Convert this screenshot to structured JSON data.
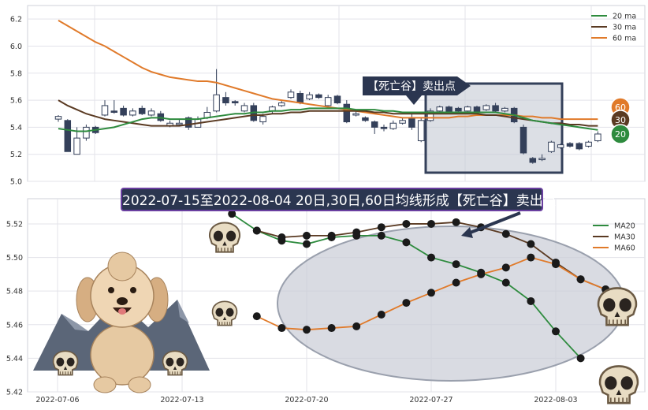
{
  "colors": {
    "ma20": "#2e8b3e",
    "ma30": "#5a3a22",
    "ma60": "#e07a2a",
    "candle_down": "#34405a",
    "candle_up_stroke": "#34405a",
    "grid": "#e3e3ea",
    "ellipse_fill": "#c9ccd6",
    "box_fill": "#c5c9d3",
    "banner_bg": "#2b3650",
    "banner_border": "#6a3fa0"
  },
  "annotation": {
    "callout": "【死亡谷】卖出点",
    "banner": "2022-07-15至2022-08-04 20日,30日,60日均线形成【死亡谷】卖出点"
  },
  "chart_data": [
    {
      "type": "candlestick",
      "ylim": [
        5.0,
        6.3
      ],
      "yticks": [
        "5.0",
        "5.2",
        "5.4",
        "5.6",
        "5.8",
        "6.0",
        "6.2"
      ],
      "legend": [
        "20 ma",
        "30 ma",
        "60 ma"
      ],
      "legend_position": "top-right",
      "end_badges": [
        "60",
        "30",
        "20"
      ],
      "candles": [
        [
          5.46,
          5.48,
          5.44,
          5.49,
          5.42
        ],
        [
          5.45,
          5.22,
          5.22,
          5.46,
          5.2
        ],
        [
          5.2,
          5.32,
          5.2,
          5.4,
          5.18
        ],
        [
          5.32,
          5.4,
          5.3,
          5.42,
          5.28
        ],
        [
          5.4,
          5.36,
          5.35,
          5.41,
          5.33
        ],
        [
          5.49,
          5.56,
          5.48,
          5.6,
          5.44
        ],
        [
          5.52,
          5.51,
          5.5,
          5.6,
          5.49
        ],
        [
          5.54,
          5.49,
          5.48,
          5.56,
          5.46
        ],
        [
          5.49,
          5.52,
          5.48,
          5.54,
          5.46
        ],
        [
          5.54,
          5.5,
          5.49,
          5.56,
          5.47
        ],
        [
          5.49,
          5.52,
          5.48,
          5.54,
          5.46
        ],
        [
          5.5,
          5.45,
          5.44,
          5.52,
          5.43
        ],
        [
          5.41,
          5.43,
          5.4,
          5.45,
          5.38
        ],
        [
          5.42,
          5.43,
          5.41,
          5.46,
          5.4
        ],
        [
          5.47,
          5.4,
          5.38,
          5.48,
          5.32
        ],
        [
          5.4,
          5.46,
          5.4,
          5.48,
          5.28
        ],
        [
          5.47,
          5.51,
          5.46,
          5.55,
          5.44
        ],
        [
          5.52,
          5.64,
          5.51,
          5.83,
          5.5
        ],
        [
          5.62,
          5.58,
          5.56,
          5.66,
          5.55
        ],
        [
          5.59,
          5.58,
          5.56,
          5.6,
          5.56
        ],
        [
          5.52,
          5.56,
          5.51,
          5.58,
          5.5
        ],
        [
          5.56,
          5.45,
          5.44,
          5.58,
          5.43
        ],
        [
          5.44,
          5.48,
          5.42,
          5.5,
          5.41
        ],
        [
          5.52,
          5.55,
          5.5,
          5.56,
          5.48
        ],
        [
          5.56,
          5.58,
          5.55,
          5.6,
          5.54
        ],
        [
          5.62,
          5.66,
          5.61,
          5.68,
          5.6
        ],
        [
          5.65,
          5.58,
          5.57,
          5.67,
          5.56
        ],
        [
          5.61,
          5.64,
          5.6,
          5.66,
          5.59
        ],
        [
          5.64,
          5.62,
          5.61,
          5.65,
          5.59
        ],
        [
          5.56,
          5.62,
          5.55,
          5.64,
          5.54
        ],
        [
          5.63,
          5.58,
          5.57,
          5.64,
          5.56
        ],
        [
          5.57,
          5.44,
          5.43,
          5.6,
          5.4
        ],
        [
          5.49,
          5.5,
          5.48,
          5.52,
          5.46
        ],
        [
          5.47,
          5.45,
          5.44,
          5.48,
          5.43
        ],
        [
          5.44,
          5.4,
          5.35,
          5.45,
          5.34
        ],
        [
          5.4,
          5.39,
          5.37,
          5.42,
          5.36
        ],
        [
          5.39,
          5.43,
          5.38,
          5.45,
          5.37
        ],
        [
          5.43,
          5.45,
          5.42,
          5.47,
          5.41
        ],
        [
          5.47,
          5.4,
          5.38,
          5.5,
          5.36
        ],
        [
          5.3,
          5.45,
          5.29,
          5.47,
          5.28
        ],
        [
          5.45,
          5.52,
          5.44,
          5.54,
          5.43
        ],
        [
          5.52,
          5.55,
          5.51,
          5.56,
          5.5
        ],
        [
          5.55,
          5.51,
          5.5,
          5.56,
          5.49
        ],
        [
          5.54,
          5.52,
          5.51,
          5.55,
          5.5
        ],
        [
          5.52,
          5.55,
          5.51,
          5.56,
          5.5
        ],
        [
          5.55,
          5.51,
          5.5,
          5.56,
          5.49
        ],
        [
          5.53,
          5.56,
          5.52,
          5.57,
          5.51
        ],
        [
          5.56,
          5.52,
          5.51,
          5.58,
          5.5
        ],
        [
          5.52,
          5.54,
          5.51,
          5.55,
          5.5
        ],
        [
          5.54,
          5.44,
          5.43,
          5.55,
          5.42
        ],
        [
          5.4,
          5.21,
          5.2,
          5.42,
          5.18
        ],
        [
          5.17,
          5.14,
          5.13,
          5.18,
          5.12
        ],
        [
          5.16,
          5.17,
          5.15,
          5.2,
          5.13
        ],
        [
          5.22,
          5.29,
          5.21,
          5.3,
          5.2
        ],
        [
          5.25,
          5.27,
          5.24,
          5.28,
          5.23
        ],
        [
          5.28,
          5.26,
          5.25,
          5.29,
          5.24
        ],
        [
          5.28,
          5.24,
          5.23,
          5.29,
          5.22
        ],
        [
          5.26,
          5.29,
          5.25,
          5.3,
          5.24
        ],
        [
          5.3,
          5.35,
          5.29,
          5.37,
          5.28
        ]
      ],
      "ma20": [
        5.39,
        5.38,
        5.37,
        5.37,
        5.38,
        5.39,
        5.4,
        5.42,
        5.44,
        5.46,
        5.47,
        5.47,
        5.46,
        5.46,
        5.46,
        5.46,
        5.47,
        5.48,
        5.49,
        5.5,
        5.5,
        5.51,
        5.51,
        5.52,
        5.52,
        5.53,
        5.53,
        5.54,
        5.54,
        5.54,
        5.54,
        5.54,
        5.53,
        5.53,
        5.53,
        5.52,
        5.52,
        5.51,
        5.51,
        5.51,
        5.51,
        5.51,
        5.51,
        5.51,
        5.51,
        5.51,
        5.51,
        5.51,
        5.5,
        5.49,
        5.47,
        5.45,
        5.44,
        5.43,
        5.42,
        5.41,
        5.4,
        5.39,
        5.38
      ],
      "ma30": [
        5.6,
        5.56,
        5.53,
        5.5,
        5.48,
        5.46,
        5.45,
        5.44,
        5.43,
        5.42,
        5.41,
        5.41,
        5.41,
        5.41,
        5.42,
        5.43,
        5.44,
        5.45,
        5.46,
        5.47,
        5.48,
        5.49,
        5.49,
        5.5,
        5.5,
        5.51,
        5.51,
        5.52,
        5.52,
        5.52,
        5.52,
        5.52,
        5.52,
        5.52,
        5.51,
        5.51,
        5.5,
        5.5,
        5.5,
        5.5,
        5.5,
        5.5,
        5.5,
        5.5,
        5.5,
        5.5,
        5.49,
        5.49,
        5.48,
        5.47,
        5.46,
        5.45,
        5.44,
        5.43,
        5.43,
        5.42,
        5.42,
        5.41,
        5.41
      ],
      "ma60": [
        6.19,
        6.15,
        6.11,
        6.07,
        6.03,
        6.0,
        5.96,
        5.92,
        5.88,
        5.84,
        5.81,
        5.79,
        5.77,
        5.76,
        5.75,
        5.74,
        5.74,
        5.73,
        5.71,
        5.69,
        5.67,
        5.65,
        5.63,
        5.61,
        5.6,
        5.59,
        5.58,
        5.57,
        5.56,
        5.55,
        5.54,
        5.53,
        5.52,
        5.51,
        5.5,
        5.49,
        5.48,
        5.47,
        5.47,
        5.47,
        5.47,
        5.47,
        5.47,
        5.48,
        5.48,
        5.49,
        5.49,
        5.49,
        5.49,
        5.49,
        5.48,
        5.48,
        5.47,
        5.47,
        5.46,
        5.46,
        5.46,
        5.46,
        5.46
      ]
    },
    {
      "type": "line",
      "ylim": [
        5.42,
        5.535
      ],
      "yticks": [
        "5.42",
        "5.44",
        "5.46",
        "5.48",
        "5.50",
        "5.52"
      ],
      "xticks": [
        {
          "value": 0,
          "label": "2022-07-06"
        },
        {
          "value": 5,
          "label": "2022-07-13"
        },
        {
          "value": 10,
          "label": "2022-07-20"
        },
        {
          "value": 15,
          "label": "2022-07-27"
        },
        {
          "value": 20,
          "label": "2022-08-03"
        }
      ],
      "legend_position": "top-right",
      "series": [
        {
          "name": "MA20",
          "color_key": "ma20",
          "x": [
            7,
            8,
            9,
            10,
            11,
            12,
            13,
            14,
            15,
            16,
            17,
            18,
            19,
            20,
            21
          ],
          "values": [
            5.526,
            5.516,
            5.51,
            5.508,
            5.512,
            5.513,
            5.513,
            5.509,
            5.5,
            5.496,
            5.491,
            5.485,
            5.474,
            5.456,
            5.44
          ]
        },
        {
          "name": "MA30",
          "color_key": "ma30",
          "x": [
            8,
            9,
            10,
            11,
            12,
            13,
            14,
            15,
            16,
            17,
            18,
            19,
            20,
            21,
            22
          ],
          "values": [
            5.516,
            5.512,
            5.513,
            5.513,
            5.515,
            5.518,
            5.52,
            5.52,
            5.521,
            5.518,
            5.514,
            5.508,
            5.497,
            5.487,
            5.481
          ]
        },
        {
          "name": "MA60",
          "color_key": "ma60",
          "x": [
            8,
            9,
            10,
            11,
            12,
            13,
            14,
            15,
            16,
            17,
            18,
            19,
            20,
            21,
            22
          ],
          "values": [
            5.465,
            5.458,
            5.457,
            5.458,
            5.459,
            5.466,
            5.473,
            5.479,
            5.485,
            5.49,
            5.494,
            5.5,
            5.496,
            5.487,
            5.481
          ]
        }
      ]
    }
  ]
}
